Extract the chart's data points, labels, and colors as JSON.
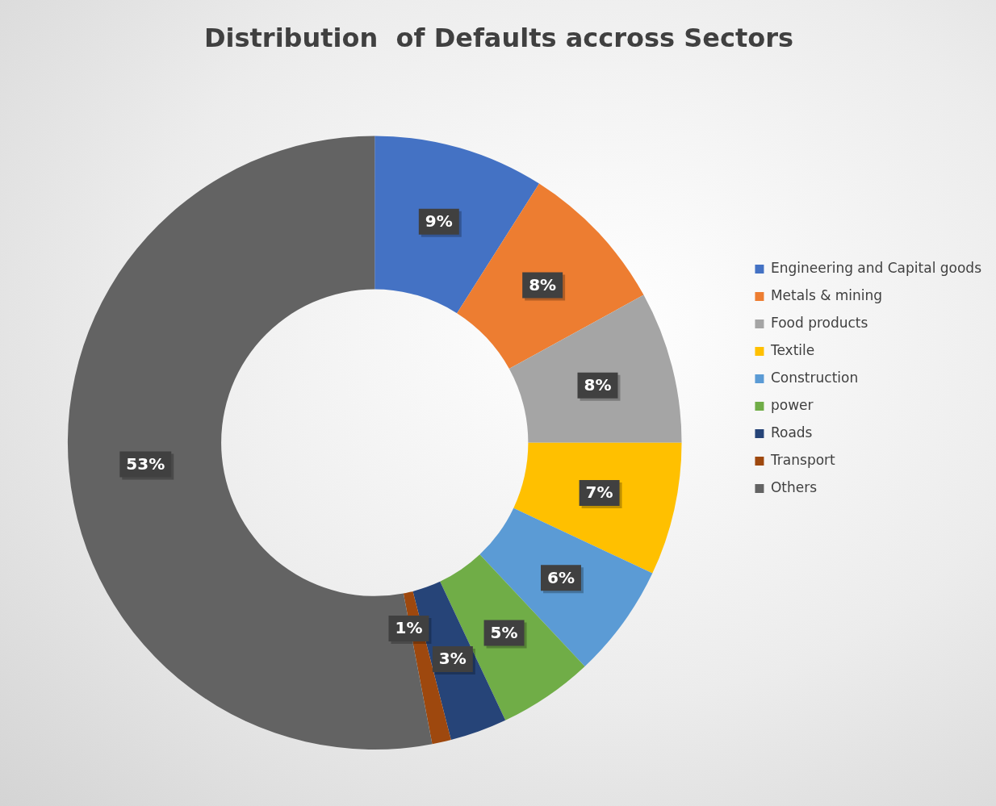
{
  "chart_data": {
    "type": "donut",
    "title": "Distribution  of Defaults accross Sectors",
    "categories": [
      "Engineering and Capital goods",
      "Metals & mining",
      "Food products",
      "Textile",
      "Construction",
      "power",
      "Roads",
      "Transport",
      "Others"
    ],
    "values": [
      9,
      8,
      8,
      7,
      6,
      5,
      3,
      1,
      53
    ],
    "value_labels": [
      "9%",
      "8%",
      "8%",
      "7%",
      "6%",
      "5%",
      "3%",
      "1%",
      "53%"
    ],
    "colors": [
      "#4472c4",
      "#ed7d31",
      "#a5a5a5",
      "#ffc000",
      "#5b9bd5",
      "#70ad47",
      "#264478",
      "#9e480e",
      "#636363"
    ],
    "legend": "right"
  }
}
